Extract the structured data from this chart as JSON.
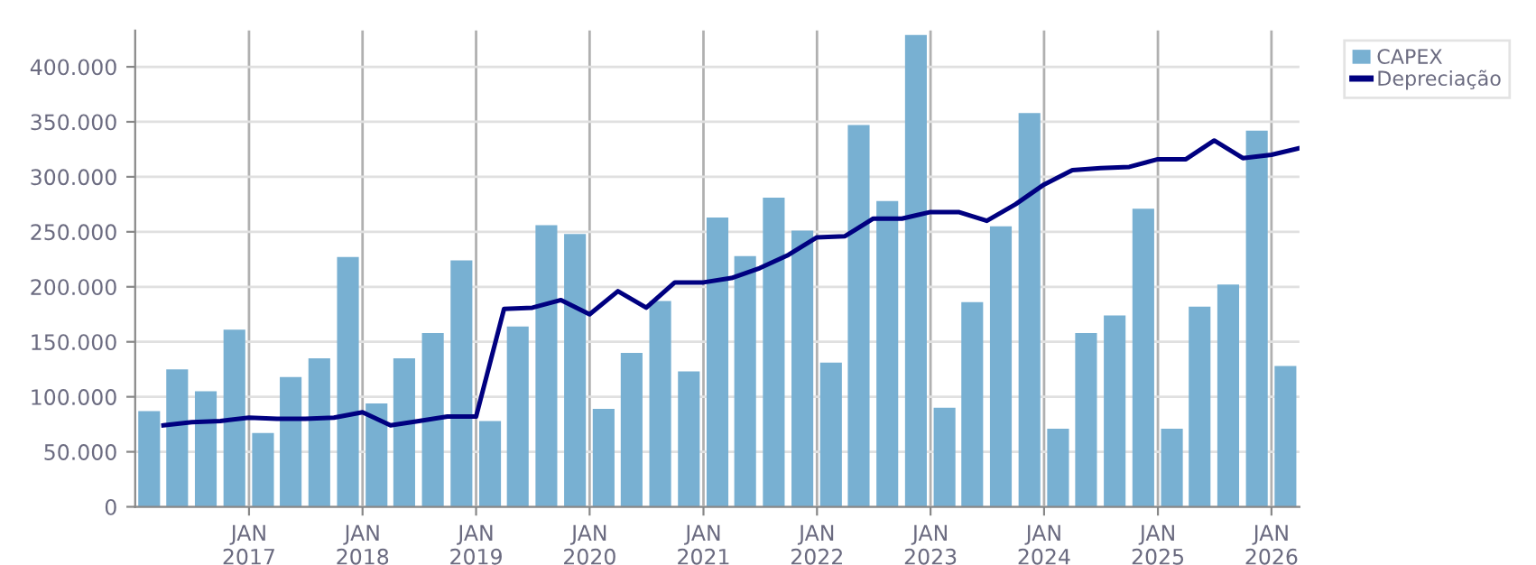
{
  "chart_data": {
    "type": "bar",
    "xlim": [
      "2016-01-01",
      "2026-04-01"
    ],
    "ylim": [
      0,
      433000
    ],
    "xticks": [
      {
        "value": "2017-01-01",
        "label": "JAN\n2017"
      },
      {
        "value": "2018-01-01",
        "label": "JAN\n2018"
      },
      {
        "value": "2019-01-01",
        "label": "JAN\n2019"
      },
      {
        "value": "2020-01-01",
        "label": "JAN\n2020"
      },
      {
        "value": "2021-01-01",
        "label": "JAN\n2021"
      },
      {
        "value": "2022-01-01",
        "label": "JAN\n2022"
      },
      {
        "value": "2023-01-01",
        "label": "JAN\n2023"
      },
      {
        "value": "2024-01-01",
        "label": "JAN\n2024"
      },
      {
        "value": "2025-01-01",
        "label": "JAN\n2025"
      },
      {
        "value": "2026-01-01",
        "label": "JAN\n2026"
      }
    ],
    "yticks": [
      {
        "value": 0,
        "label": "0"
      },
      {
        "value": 50000,
        "label": "50.000"
      },
      {
        "value": 100000,
        "label": "100.000"
      },
      {
        "value": 150000,
        "label": "150.000"
      },
      {
        "value": 200000,
        "label": "200.000"
      },
      {
        "value": 250000,
        "label": "250.000"
      },
      {
        "value": 300000,
        "label": "300.000"
      },
      {
        "value": 350000,
        "label": "350.000"
      },
      {
        "value": 400000,
        "label": "400.000"
      }
    ],
    "grid": true,
    "legend": "top right",
    "series": [
      {
        "name": "CAPEX",
        "color": "#78b0d2",
        "x": [
          "2016-02-15",
          "2016-05-15",
          "2016-08-15",
          "2016-11-15",
          "2017-02-15",
          "2017-05-15",
          "2017-08-15",
          "2017-11-15",
          "2018-02-15",
          "2018-05-15",
          "2018-08-15",
          "2018-11-15",
          "2019-02-15",
          "2019-05-15",
          "2019-08-15",
          "2019-11-15",
          "2020-02-15",
          "2020-05-15",
          "2020-08-15",
          "2020-11-15",
          "2021-02-15",
          "2021-05-15",
          "2021-08-15",
          "2021-11-15",
          "2022-02-15",
          "2022-05-15",
          "2022-08-15",
          "2022-11-15",
          "2023-02-15",
          "2023-05-15",
          "2023-08-15",
          "2023-11-15",
          "2024-02-15",
          "2024-05-15",
          "2024-08-15",
          "2024-11-15",
          "2025-02-15",
          "2025-05-15",
          "2025-08-15",
          "2025-11-15",
          "2026-02-15"
        ],
        "values": [
          87000,
          125000,
          105000,
          161000,
          67000,
          118000,
          135000,
          227000,
          94000,
          135000,
          158000,
          224000,
          78000,
          164000,
          256000,
          248000,
          89000,
          140000,
          187000,
          123000,
          263000,
          228000,
          281000,
          251000,
          131000,
          347000,
          278000,
          429000,
          90000,
          186000,
          255000,
          358000,
          71000,
          158000,
          174000,
          271000,
          71000,
          182000,
          202000,
          342000,
          128000
        ]
      },
      {
        "name": "Depreciação",
        "type": "line",
        "color": "#000080",
        "marker": "none",
        "line_style": "solid",
        "x": [
          "2016-04-01",
          "2016-07-01",
          "2016-10-01",
          "2017-01-01",
          "2017-04-01",
          "2017-07-01",
          "2017-10-01",
          "2018-01-01",
          "2018-04-01",
          "2018-07-01",
          "2018-10-01",
          "2019-01-01",
          "2019-04-01",
          "2019-07-01",
          "2019-10-01",
          "2020-01-01",
          "2020-04-01",
          "2020-07-01",
          "2020-10-01",
          "2021-01-01",
          "2021-04-01",
          "2021-07-01",
          "2021-10-01",
          "2022-01-01",
          "2022-04-01",
          "2022-07-01",
          "2022-10-01",
          "2023-01-01",
          "2023-04-01",
          "2023-07-01",
          "2023-10-01",
          "2024-01-01",
          "2024-04-01",
          "2024-07-01",
          "2024-10-01",
          "2025-01-01",
          "2025-04-01",
          "2025-07-01",
          "2025-10-01",
          "2026-01-01",
          "2026-04-01"
        ],
        "values": [
          74000,
          77000,
          78000,
          81000,
          80000,
          80000,
          81000,
          86000,
          74000,
          78000,
          82000,
          82000,
          180000,
          181000,
          188000,
          175000,
          196000,
          181000,
          204000,
          204000,
          208000,
          217000,
          229000,
          245000,
          246000,
          262000,
          262000,
          268000,
          268000,
          260000,
          275000,
          293000,
          306000,
          308000,
          309000,
          316000,
          316000,
          333000,
          317000,
          320000,
          326000
        ]
      }
    ]
  }
}
